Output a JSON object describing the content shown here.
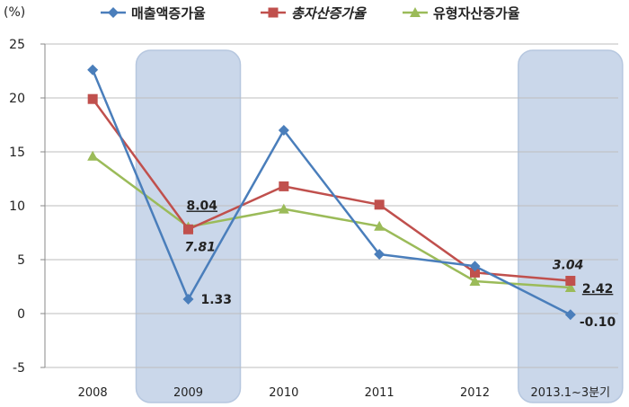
{
  "chart_data": {
    "type": "line",
    "ylabel": "(%)",
    "ylim": [
      -5,
      25
    ],
    "yticks": [
      -5,
      0,
      5,
      10,
      15,
      20,
      25
    ],
    "categories": [
      "2008",
      "2009",
      "2010",
      "2011",
      "2012",
      "2013.1~3분기"
    ],
    "highlighted_categories": [
      "2009",
      "2013.1~3분기"
    ],
    "grid": true,
    "legend_position": "top",
    "series": [
      {
        "name": "매출액증가율",
        "color": "#4A7EBB",
        "marker": "diamond",
        "italic": false,
        "values": [
          22.6,
          1.33,
          17.0,
          5.5,
          4.4,
          -0.1
        ]
      },
      {
        "name": "총자산증가율",
        "color": "#C0504D",
        "marker": "square",
        "italic": true,
        "values": [
          19.9,
          7.81,
          11.8,
          10.1,
          3.8,
          3.04
        ]
      },
      {
        "name": "유형자산증가율",
        "color": "#9BBB59",
        "marker": "triangle",
        "italic": false,
        "values": [
          14.6,
          8.04,
          9.7,
          8.1,
          3.0,
          2.42
        ]
      }
    ],
    "data_labels": [
      {
        "text": "8.04",
        "underline": true,
        "italic": false
      },
      {
        "text": "7.81",
        "underline": false,
        "italic": true
      },
      {
        "text": "1.33",
        "underline": false,
        "italic": false
      },
      {
        "text": "3.04",
        "underline": false,
        "italic": true
      },
      {
        "text": "2.42",
        "underline": true,
        "italic": false
      },
      {
        "text": "-0.10",
        "underline": false,
        "italic": false
      }
    ],
    "highlight_color": "#C5D3E8"
  }
}
